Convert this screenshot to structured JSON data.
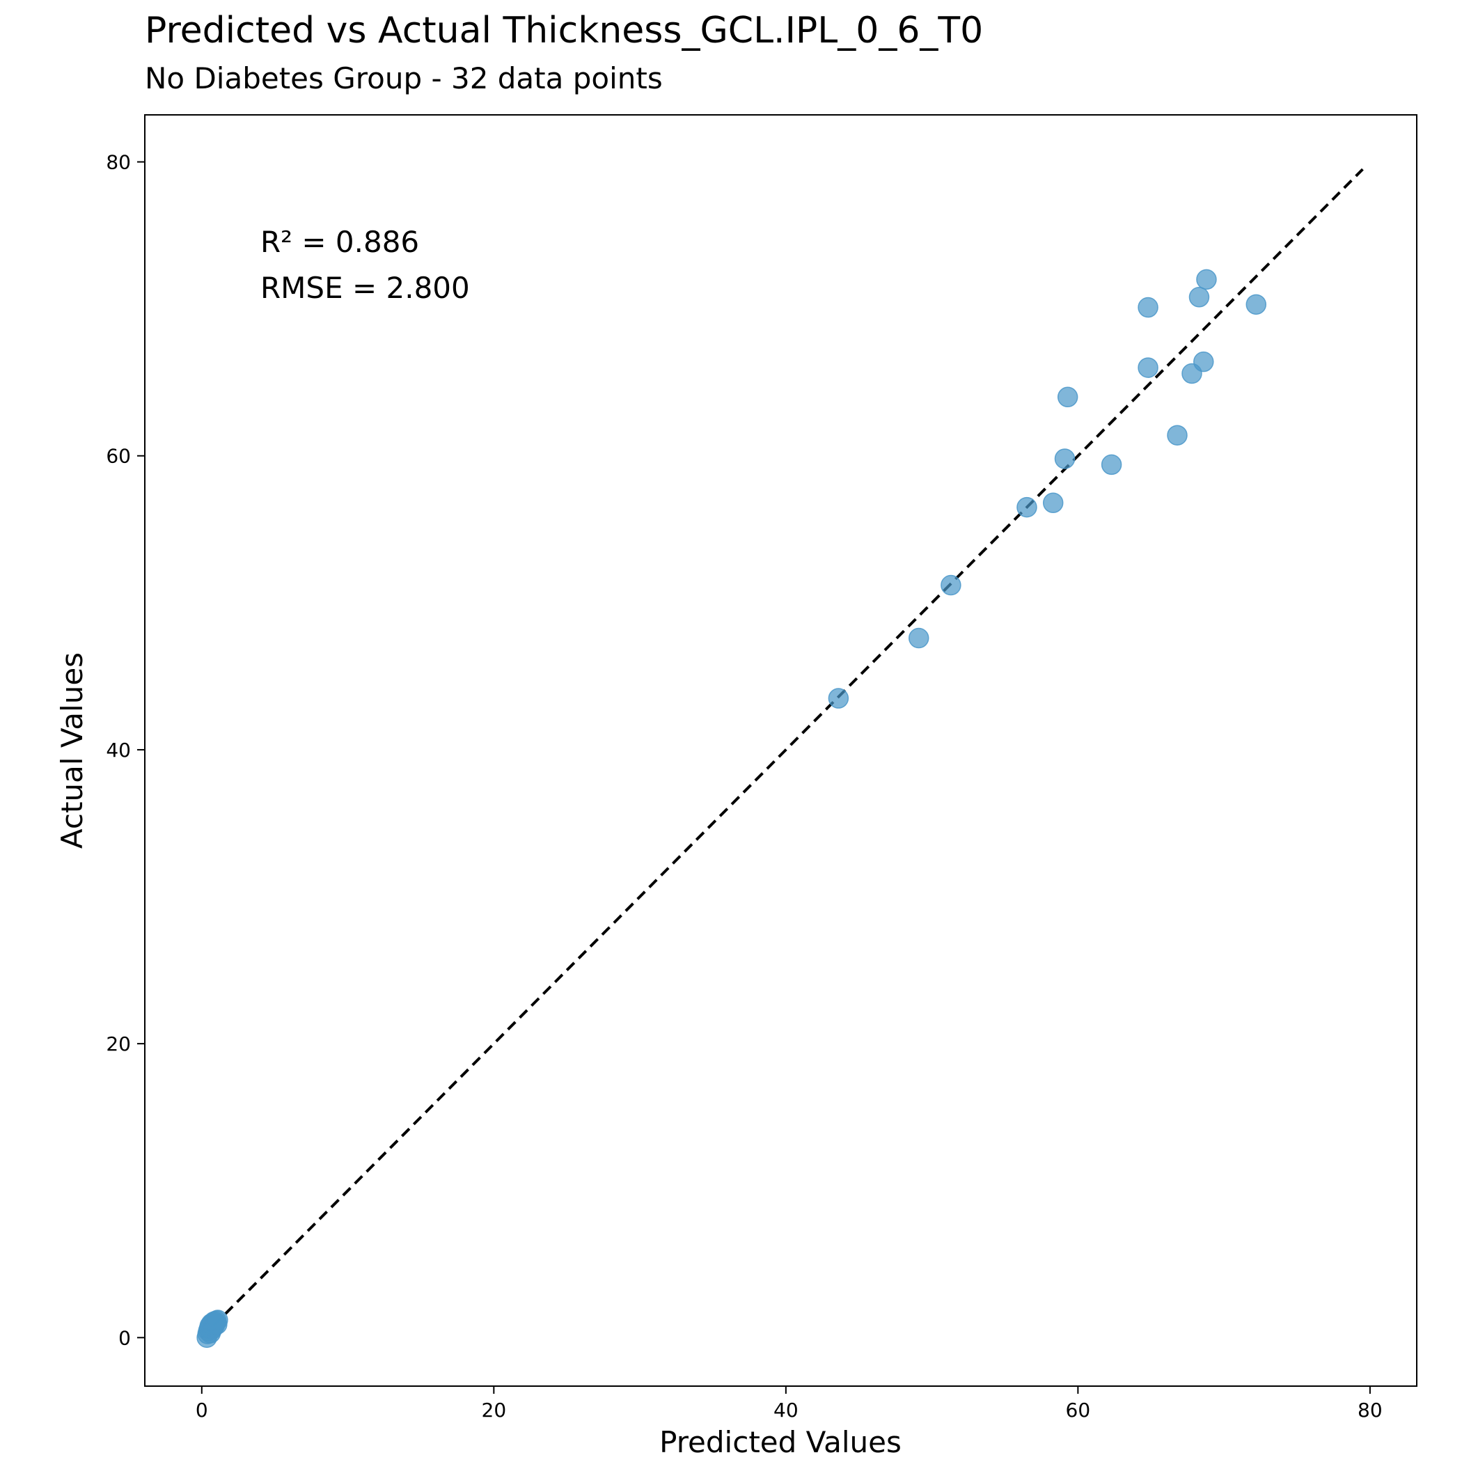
{
  "chart_data": {
    "type": "scatter",
    "title": "Predicted vs Actual Thickness_GCL.IPL_0_6_T0",
    "subtitle": "No Diabetes Group - 32 data points",
    "xlabel": "Predicted Values",
    "ylabel": "Actual Values",
    "xlim": [
      -3.9,
      83.2
    ],
    "ylim": [
      -3.3,
      83.2
    ],
    "xticks": [
      0,
      20,
      40,
      60,
      80
    ],
    "yticks": [
      0,
      20,
      40,
      60,
      80
    ],
    "grid": false,
    "annotations": [
      "R² = 0.886",
      "RMSE = 2.800"
    ],
    "reference_line": {
      "style": "dashed",
      "color": "#000000",
      "from": [
        0,
        0
      ],
      "to": [
        79.5,
        79.5
      ]
    },
    "point_color": "#4a97c9",
    "points": [
      {
        "x": 43.6,
        "y": 43.5
      },
      {
        "x": 49.1,
        "y": 47.6
      },
      {
        "x": 51.3,
        "y": 51.2
      },
      {
        "x": 56.5,
        "y": 56.5
      },
      {
        "x": 58.3,
        "y": 56.8
      },
      {
        "x": 59.1,
        "y": 59.8
      },
      {
        "x": 59.3,
        "y": 64.0
      },
      {
        "x": 62.3,
        "y": 59.4
      },
      {
        "x": 64.8,
        "y": 70.1
      },
      {
        "x": 64.8,
        "y": 66.0
      },
      {
        "x": 66.8,
        "y": 61.4
      },
      {
        "x": 67.8,
        "y": 65.6
      },
      {
        "x": 68.3,
        "y": 70.8
      },
      {
        "x": 68.6,
        "y": 66.4
      },
      {
        "x": 68.8,
        "y": 72.0
      },
      {
        "x": 72.2,
        "y": 70.3
      },
      {
        "x": 0.35,
        "y": 0.0
      },
      {
        "x": 0.4,
        "y": 0.25
      },
      {
        "x": 0.45,
        "y": 0.45
      },
      {
        "x": 0.5,
        "y": 0.6
      },
      {
        "x": 0.55,
        "y": 0.8
      },
      {
        "x": 0.6,
        "y": 0.3
      },
      {
        "x": 0.65,
        "y": 0.95
      },
      {
        "x": 0.7,
        "y": 0.55
      },
      {
        "x": 0.75,
        "y": 1.0
      },
      {
        "x": 0.8,
        "y": 0.7
      },
      {
        "x": 0.85,
        "y": 1.1
      },
      {
        "x": 0.9,
        "y": 0.85
      },
      {
        "x": 0.95,
        "y": 1.05
      },
      {
        "x": 1.0,
        "y": 1.15
      },
      {
        "x": 1.05,
        "y": 0.9
      },
      {
        "x": 1.1,
        "y": 1.2
      }
    ]
  }
}
